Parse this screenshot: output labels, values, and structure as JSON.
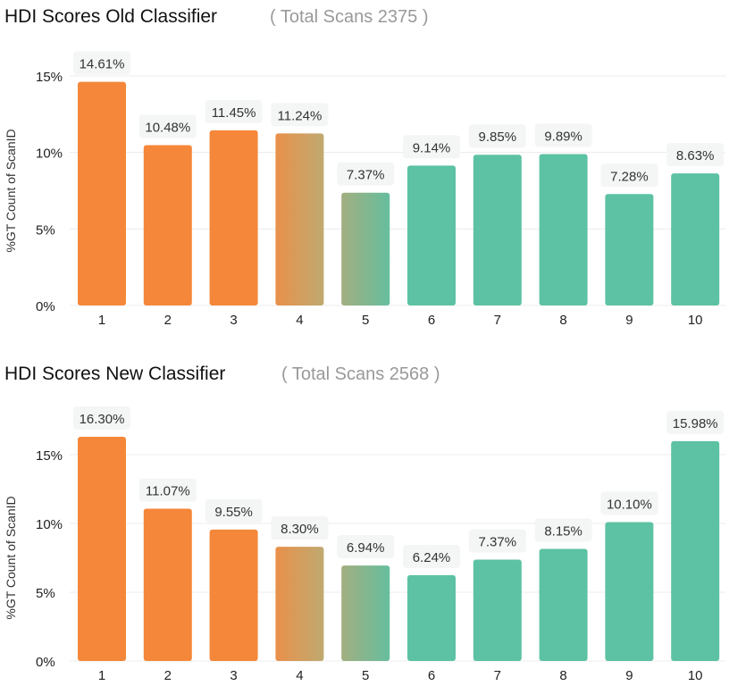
{
  "colors": {
    "orange": "#F5873A",
    "teal": "#5CC2A3",
    "grid": "#ececec",
    "label_bg": "#f4f5f5"
  },
  "chart_data": [
    {
      "type": "bar",
      "title": "HDI Scores Old Classifier",
      "subtitle": "( Total Scans 2375 )",
      "ylabel": "%GT Count of ScanID",
      "xlabel": "",
      "categories": [
        "1",
        "2",
        "3",
        "4",
        "5",
        "6",
        "7",
        "8",
        "9",
        "10"
      ],
      "values": [
        14.61,
        10.48,
        11.45,
        11.24,
        7.37,
        9.14,
        9.85,
        9.89,
        7.28,
        8.63
      ],
      "value_labels": [
        "14.61%",
        "10.48%",
        "11.45%",
        "11.24%",
        "7.37%",
        "9.14%",
        "9.85%",
        "9.89%",
        "7.28%",
        "8.63%"
      ],
      "yticks": [
        "0%",
        "5%",
        "10%",
        "15%"
      ],
      "ylim": [
        0,
        15
      ],
      "grid": true
    },
    {
      "type": "bar",
      "title": "HDI Scores New Classifier",
      "subtitle": "( Total Scans 2568 )",
      "ylabel": "%GT Count of ScanID",
      "xlabel": "",
      "categories": [
        "1",
        "2",
        "3",
        "4",
        "5",
        "6",
        "7",
        "8",
        "9",
        "10"
      ],
      "values": [
        16.3,
        11.07,
        9.55,
        8.3,
        6.94,
        6.24,
        7.37,
        8.15,
        10.1,
        15.98
      ],
      "value_labels": [
        "16.30%",
        "11.07%",
        "9.55%",
        "8.30%",
        "6.94%",
        "6.24%",
        "7.37%",
        "8.15%",
        "10.10%",
        "15.98%"
      ],
      "yticks": [
        "0%",
        "5%",
        "10%",
        "15%"
      ],
      "ylim": [
        0,
        15
      ],
      "grid": true
    }
  ]
}
